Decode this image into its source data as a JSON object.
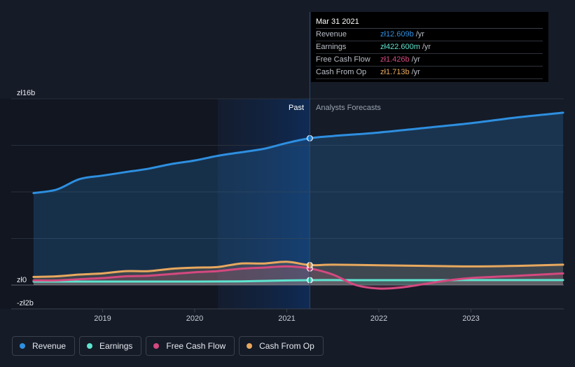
{
  "tooltip": {
    "date": "Mar 31 2021",
    "rows": [
      {
        "label": "Revenue",
        "value": "zł12.609b",
        "unit": "/yr",
        "color": "#2e8fe0"
      },
      {
        "label": "Earnings",
        "value": "zł422.600m",
        "unit": "/yr",
        "color": "#5ee4cf"
      },
      {
        "label": "Free Cash Flow",
        "value": "zł1.426b",
        "unit": "/yr",
        "color": "#d4497f"
      },
      {
        "label": "Cash From Op",
        "value": "zł1.713b",
        "unit": "/yr",
        "color": "#e8a85e"
      }
    ]
  },
  "regions": {
    "past": "Past",
    "forecast": "Analysts Forecasts"
  },
  "legend": [
    {
      "label": "Revenue",
      "color": "#2e8fe0"
    },
    {
      "label": "Earnings",
      "color": "#5ee4cf"
    },
    {
      "label": "Free Cash Flow",
      "color": "#d4497f"
    },
    {
      "label": "Cash From Op",
      "color": "#e8a85e"
    }
  ],
  "chart_data": {
    "type": "line",
    "y_tick_labels": [
      "zł16b",
      "zł0",
      "-zł2b"
    ],
    "ylim": [
      -2,
      16
    ],
    "x_tick_labels": [
      "2019",
      "2020",
      "2021",
      "2022",
      "2023"
    ],
    "xlim": [
      2018.2,
      2024.0
    ],
    "divider_x": 2021.25,
    "highlight_start_x": 2020.25,
    "series": [
      {
        "name": "Revenue",
        "color": "#2e8fe0",
        "marker_x": 2021.25,
        "marker_y": 12.609,
        "points": [
          [
            2018.25,
            7.9
          ],
          [
            2018.5,
            8.2
          ],
          [
            2018.75,
            9.1
          ],
          [
            2019.0,
            9.4
          ],
          [
            2019.25,
            9.7
          ],
          [
            2019.5,
            10.0
          ],
          [
            2019.75,
            10.4
          ],
          [
            2020.0,
            10.7
          ],
          [
            2020.25,
            11.1
          ],
          [
            2020.5,
            11.4
          ],
          [
            2020.75,
            11.7
          ],
          [
            2021.0,
            12.2
          ],
          [
            2021.25,
            12.609
          ],
          [
            2021.5,
            12.8
          ],
          [
            2022.0,
            13.1
          ],
          [
            2022.5,
            13.5
          ],
          [
            2023.0,
            13.9
          ],
          [
            2023.5,
            14.4
          ],
          [
            2024.0,
            14.8
          ]
        ]
      },
      {
        "name": "Earnings",
        "color": "#5ee4cf",
        "marker_x": 2021.25,
        "marker_y": 0.4226,
        "points": [
          [
            2018.25,
            0.3
          ],
          [
            2018.5,
            0.3
          ],
          [
            2018.75,
            0.3
          ],
          [
            2019.0,
            0.3
          ],
          [
            2019.5,
            0.3
          ],
          [
            2020.0,
            0.3
          ],
          [
            2020.5,
            0.32
          ],
          [
            2021.0,
            0.4
          ],
          [
            2021.25,
            0.4226
          ],
          [
            2021.5,
            0.43
          ],
          [
            2022.0,
            0.42
          ],
          [
            2022.5,
            0.42
          ],
          [
            2023.0,
            0.43
          ],
          [
            2023.5,
            0.43
          ],
          [
            2024.0,
            0.43
          ]
        ]
      },
      {
        "name": "Free Cash Flow",
        "color": "#d4497f",
        "marker_x": 2021.25,
        "marker_y": 1.426,
        "points": [
          [
            2018.25,
            0.4
          ],
          [
            2018.5,
            0.4
          ],
          [
            2018.75,
            0.5
          ],
          [
            2019.0,
            0.6
          ],
          [
            2019.25,
            0.75
          ],
          [
            2019.5,
            0.8
          ],
          [
            2019.75,
            0.95
          ],
          [
            2020.0,
            1.1
          ],
          [
            2020.25,
            1.2
          ],
          [
            2020.5,
            1.4
          ],
          [
            2020.75,
            1.5
          ],
          [
            2021.0,
            1.6
          ],
          [
            2021.25,
            1.426
          ],
          [
            2021.5,
            0.9
          ],
          [
            2021.75,
            0.0
          ],
          [
            2022.0,
            -0.3
          ],
          [
            2022.25,
            -0.2
          ],
          [
            2022.5,
            0.1
          ],
          [
            2022.75,
            0.4
          ],
          [
            2023.0,
            0.6
          ],
          [
            2023.5,
            0.8
          ],
          [
            2024.0,
            1.0
          ]
        ]
      },
      {
        "name": "Cash From Op",
        "color": "#e8a85e",
        "marker_x": 2021.25,
        "marker_y": 1.713,
        "points": [
          [
            2018.25,
            0.7
          ],
          [
            2018.5,
            0.75
          ],
          [
            2018.75,
            0.9
          ],
          [
            2019.0,
            1.0
          ],
          [
            2019.25,
            1.2
          ],
          [
            2019.5,
            1.2
          ],
          [
            2019.75,
            1.4
          ],
          [
            2020.0,
            1.5
          ],
          [
            2020.25,
            1.55
          ],
          [
            2020.5,
            1.85
          ],
          [
            2020.75,
            1.85
          ],
          [
            2021.0,
            2.0
          ],
          [
            2021.25,
            1.713
          ],
          [
            2021.5,
            1.75
          ],
          [
            2022.0,
            1.7
          ],
          [
            2022.5,
            1.65
          ],
          [
            2023.0,
            1.6
          ],
          [
            2023.5,
            1.65
          ],
          [
            2024.0,
            1.75
          ]
        ]
      }
    ]
  }
}
